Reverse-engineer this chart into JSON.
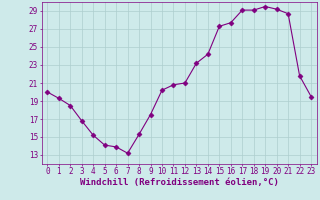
{
  "x": [
    0,
    1,
    2,
    3,
    4,
    5,
    6,
    7,
    8,
    9,
    10,
    11,
    12,
    13,
    14,
    15,
    16,
    17,
    18,
    19,
    20,
    21,
    22,
    23
  ],
  "y": [
    20.0,
    19.3,
    18.5,
    16.8,
    15.2,
    14.1,
    13.9,
    13.2,
    15.3,
    17.5,
    20.2,
    20.8,
    21.0,
    23.2,
    24.2,
    27.3,
    27.7,
    29.1,
    29.1,
    29.5,
    29.2,
    28.7,
    21.8,
    19.5
  ],
  "line_color": "#800080",
  "marker": "D",
  "markersize": 2.5,
  "linewidth": 0.8,
  "xlabel": "Windchill (Refroidissement éolien,°C)",
  "xlim": [
    -0.5,
    23.5
  ],
  "ylim": [
    12,
    30
  ],
  "yticks": [
    13,
    15,
    17,
    19,
    21,
    23,
    25,
    27,
    29
  ],
  "xticks": [
    0,
    1,
    2,
    3,
    4,
    5,
    6,
    7,
    8,
    9,
    10,
    11,
    12,
    13,
    14,
    15,
    16,
    17,
    18,
    19,
    20,
    21,
    22,
    23
  ],
  "background_color": "#ceeaea",
  "grid_color": "#aecece",
  "xlabel_fontsize": 6.5,
  "tick_fontsize": 5.5,
  "label_color": "#800080"
}
